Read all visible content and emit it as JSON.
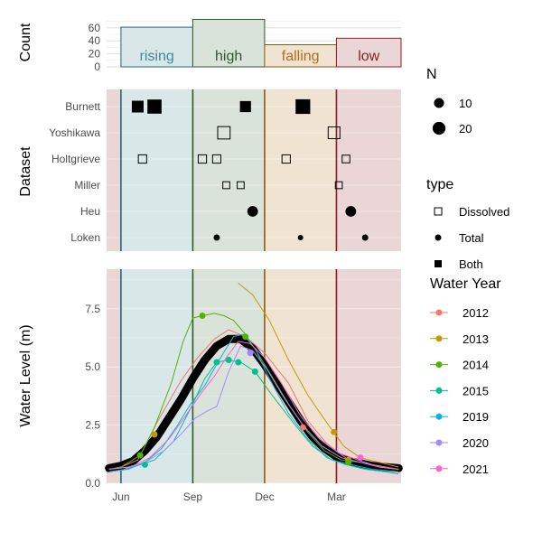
{
  "chart_data": [
    {
      "type": "bar",
      "panel": "top",
      "ylabel": "Count",
      "yticks": [
        "0",
        "20",
        "40",
        "60"
      ],
      "ylim": [
        0,
        75
      ],
      "categories": [
        "rising",
        "high",
        "falling",
        "low"
      ],
      "values": [
        61,
        73,
        34,
        44
      ],
      "month_start": [
        0,
        3,
        6,
        9
      ],
      "month_end": [
        3,
        6,
        9,
        11.7
      ],
      "colors": {
        "rising": {
          "fill": "#d9e7e9",
          "stroke": "#1f6a78",
          "text": "#3a8a99"
        },
        "high": {
          "fill": "#dae3d9",
          "stroke": "#2a5a2a",
          "text": "#2a5a2a"
        },
        "falling": {
          "fill": "#f0e3d2",
          "stroke": "#8a5a10",
          "text": "#b06d16"
        },
        "low": {
          "fill": "#ead6d6",
          "stroke": "#8a2020",
          "text": "#8a2020"
        }
      }
    },
    {
      "type": "scatter",
      "panel": "middle",
      "ylabel": "Dataset",
      "datasets": [
        "Burnett",
        "Yoshikawa",
        "Holtgrieve",
        "Miller",
        "Heu",
        "Loken"
      ],
      "xlim": [
        -0.6,
        11.7
      ],
      "points": [
        {
          "dataset": "Burnett",
          "x": 0.7,
          "n": 12,
          "type": "Both"
        },
        {
          "dataset": "Burnett",
          "x": 1.4,
          "n": 20,
          "type": "Both"
        },
        {
          "dataset": "Burnett",
          "x": 5.2,
          "n": 10,
          "type": "Both"
        },
        {
          "dataset": "Burnett",
          "x": 7.6,
          "n": 22,
          "type": "Both"
        },
        {
          "dataset": "Yoshikawa",
          "x": 4.3,
          "n": 14,
          "type": "Dissolved"
        },
        {
          "dataset": "Yoshikawa",
          "x": 8.9,
          "n": 12,
          "type": "Dissolved"
        },
        {
          "dataset": "Holtgrieve",
          "x": 0.9,
          "n": 4,
          "type": "Dissolved"
        },
        {
          "dataset": "Holtgrieve",
          "x": 3.4,
          "n": 4,
          "type": "Dissolved"
        },
        {
          "dataset": "Holtgrieve",
          "x": 4.0,
          "n": 4,
          "type": "Dissolved"
        },
        {
          "dataset": "Holtgrieve",
          "x": 6.9,
          "n": 4,
          "type": "Dissolved"
        },
        {
          "dataset": "Holtgrieve",
          "x": 9.4,
          "n": 3,
          "type": "Dissolved"
        },
        {
          "dataset": "Miller",
          "x": 4.4,
          "n": 2,
          "type": "Dissolved"
        },
        {
          "dataset": "Miller",
          "x": 5.0,
          "n": 2,
          "type": "Dissolved"
        },
        {
          "dataset": "Miller",
          "x": 9.1,
          "n": 2,
          "type": "Dissolved"
        },
        {
          "dataset": "Heu",
          "x": 5.5,
          "n": 12,
          "type": "Total"
        },
        {
          "dataset": "Heu",
          "x": 9.6,
          "n": 12,
          "type": "Total"
        },
        {
          "dataset": "Loken",
          "x": 4.0,
          "n": 2,
          "type": "Total"
        },
        {
          "dataset": "Loken",
          "x": 7.5,
          "n": 1,
          "type": "Total"
        },
        {
          "dataset": "Loken",
          "x": 10.2,
          "n": 2,
          "type": "Total"
        }
      ],
      "legend_size": {
        "title": "N",
        "entries": [
          {
            "label": "10",
            "n": 10
          },
          {
            "label": "20",
            "n": 20
          }
        ]
      },
      "legend_type": {
        "title": "type",
        "entries": [
          "Dissolved",
          "Total",
          "Both"
        ]
      }
    },
    {
      "type": "line",
      "panel": "bottom",
      "ylabel": "Water Level (m)",
      "ylim": [
        0,
        9.2
      ],
      "yticks": [
        "0.0",
        "2.5",
        "5.0",
        "7.5"
      ],
      "xlim": [
        -0.6,
        11.7
      ],
      "xticks": [
        {
          "label": "Jun",
          "x": 0
        },
        {
          "label": "Sep",
          "x": 3
        },
        {
          "label": "Dec",
          "x": 6
        },
        {
          "label": "Mar",
          "x": 9
        }
      ],
      "legend_title": "Water Year",
      "series": [
        {
          "name": "2012",
          "color": "#f8766d",
          "x": [
            -0.5,
            0,
            0.7,
            1.5,
            2.5,
            3.2,
            3.9,
            4.5,
            5.2,
            6.0,
            7.0,
            7.8,
            8.6,
            9.5,
            10.5,
            11.6
          ],
          "y": [
            0.6,
            0.7,
            1.0,
            2.6,
            4.4,
            5.4,
            6.2,
            6.6,
            6.3,
            5.6,
            4.3,
            2.7,
            1.7,
            1.0,
            0.8,
            0.6
          ]
        },
        {
          "name": "2013",
          "color": "#c49a00",
          "x": [
            4.9,
            5.5,
            6.2,
            7.0,
            7.8,
            8.6,
            9.3,
            10.0,
            10.8,
            11.6
          ],
          "y": [
            8.6,
            8.1,
            7.0,
            5.3,
            3.8,
            2.6,
            1.6,
            1.1,
            0.9,
            0.7
          ]
        },
        {
          "name": "2014",
          "color": "#53b400",
          "x": [
            -0.5,
            0,
            0.8,
            1.4,
            2.1,
            2.6,
            3.0,
            3.4,
            3.9,
            4.3,
            4.7,
            5.2,
            5.7,
            6.3,
            7.0,
            7.8,
            8.5,
            9.2,
            10.0,
            10.8,
            11.6
          ],
          "y": [
            0.6,
            0.7,
            1.2,
            2.4,
            4.3,
            6.1,
            7.1,
            7.2,
            7.3,
            7.2,
            7.0,
            6.4,
            5.6,
            4.6,
            3.4,
            2.2,
            1.4,
            1.0,
            0.9,
            0.7,
            0.6
          ]
        },
        {
          "name": "2015",
          "color": "#00c094",
          "x": [
            -0.5,
            0.2,
            0.8,
            1.4,
            2.2,
            2.9,
            3.5,
            4.0,
            4.5,
            5.0,
            5.6,
            6.3,
            7.2,
            8.0,
            8.8,
            9.6,
            10.5,
            11.6
          ],
          "y": [
            0.5,
            0.6,
            0.8,
            1.0,
            1.8,
            3.2,
            4.5,
            5.2,
            5.3,
            5.2,
            4.8,
            3.8,
            2.6,
            1.6,
            1.0,
            0.8,
            0.6,
            0.5
          ]
        },
        {
          "name": "2019",
          "color": "#00b6eb",
          "x": [
            -0.5,
            0.3,
            1.0,
            1.7,
            2.3,
            2.9,
            3.5,
            4.1,
            4.7,
            5.1,
            5.6,
            6.2,
            7.0,
            7.8,
            8.6,
            9.4,
            10.2,
            11.0,
            11.6
          ],
          "y": [
            0.5,
            0.6,
            0.9,
            1.5,
            2.4,
            3.4,
            4.2,
            5.3,
            6.3,
            6.4,
            5.8,
            4.5,
            3.0,
            1.9,
            1.1,
            0.8,
            0.6,
            0.5,
            0.4
          ]
        },
        {
          "name": "2020",
          "color": "#a58aff",
          "x": [
            -0.5,
            0.3,
            1.0,
            1.8,
            2.5,
            3.1,
            3.6,
            4.0,
            4.5,
            5.0,
            5.5,
            6.1,
            6.8,
            7.6,
            8.4,
            9.2,
            10.0,
            10.8,
            11.6
          ],
          "y": [
            0.6,
            0.7,
            0.9,
            1.4,
            2.1,
            2.8,
            3.1,
            3.3,
            4.8,
            5.9,
            5.7,
            4.9,
            3.7,
            2.5,
            1.6,
            1.1,
            0.9,
            0.7,
            0.6
          ]
        },
        {
          "name": "2021",
          "color": "#fb61d7",
          "x": [
            -0.5,
            0.4,
            1.2,
            2.0,
            2.7,
            3.3,
            3.9,
            4.4,
            4.9,
            5.4,
            6.0,
            6.7,
            7.5,
            8.3,
            9.1,
            9.9,
            10.8,
            11.6
          ],
          "y": [
            0.6,
            0.7,
            1.1,
            1.9,
            2.9,
            3.8,
            4.6,
            5.4,
            6.1,
            6.0,
            5.4,
            4.3,
            2.9,
            1.9,
            1.3,
            1.0,
            0.7,
            0.6
          ]
        }
      ],
      "mean_line": {
        "color": "#000000",
        "x": [
          -0.5,
          0,
          0.5,
          1.0,
          1.5,
          2.0,
          2.5,
          3.0,
          3.5,
          4.0,
          4.5,
          5.0,
          5.5,
          6.0,
          6.5,
          7.0,
          7.5,
          8.0,
          8.5,
          9.0,
          9.5,
          10.0,
          10.5,
          11.0,
          11.6
        ],
        "y": [
          0.65,
          0.75,
          0.95,
          1.4,
          2.0,
          2.8,
          3.6,
          4.5,
          5.3,
          5.9,
          6.2,
          6.2,
          5.8,
          5.1,
          4.3,
          3.5,
          2.7,
          2.0,
          1.5,
          1.15,
          0.95,
          0.85,
          0.75,
          0.7,
          0.65
        ]
      },
      "markers": [
        {
          "series": "2012",
          "x": 7.6,
          "y": 2.4
        },
        {
          "series": "2013",
          "x": 1.4,
          "y": 2.1
        },
        {
          "series": "2013",
          "x": 8.9,
          "y": 2.2
        },
        {
          "series": "2013",
          "x": 9.5,
          "y": 1.0
        },
        {
          "series": "2014",
          "x": 0.8,
          "y": 1.2
        },
        {
          "series": "2014",
          "x": 3.4,
          "y": 7.2
        },
        {
          "series": "2014",
          "x": 5.2,
          "y": 6.3
        },
        {
          "series": "2014",
          "x": 9.5,
          "y": 0.9
        },
        {
          "series": "2015",
          "x": 1.0,
          "y": 0.8
        },
        {
          "series": "2015",
          "x": 4.0,
          "y": 5.2
        },
        {
          "series": "2015",
          "x": 4.5,
          "y": 5.3
        },
        {
          "series": "2015",
          "x": 4.9,
          "y": 5.2
        },
        {
          "series": "2015",
          "x": 5.6,
          "y": 4.8
        },
        {
          "series": "2020",
          "x": 5.4,
          "y": 5.6
        },
        {
          "series": "2021",
          "x": 10.0,
          "y": 1.1
        }
      ]
    }
  ]
}
